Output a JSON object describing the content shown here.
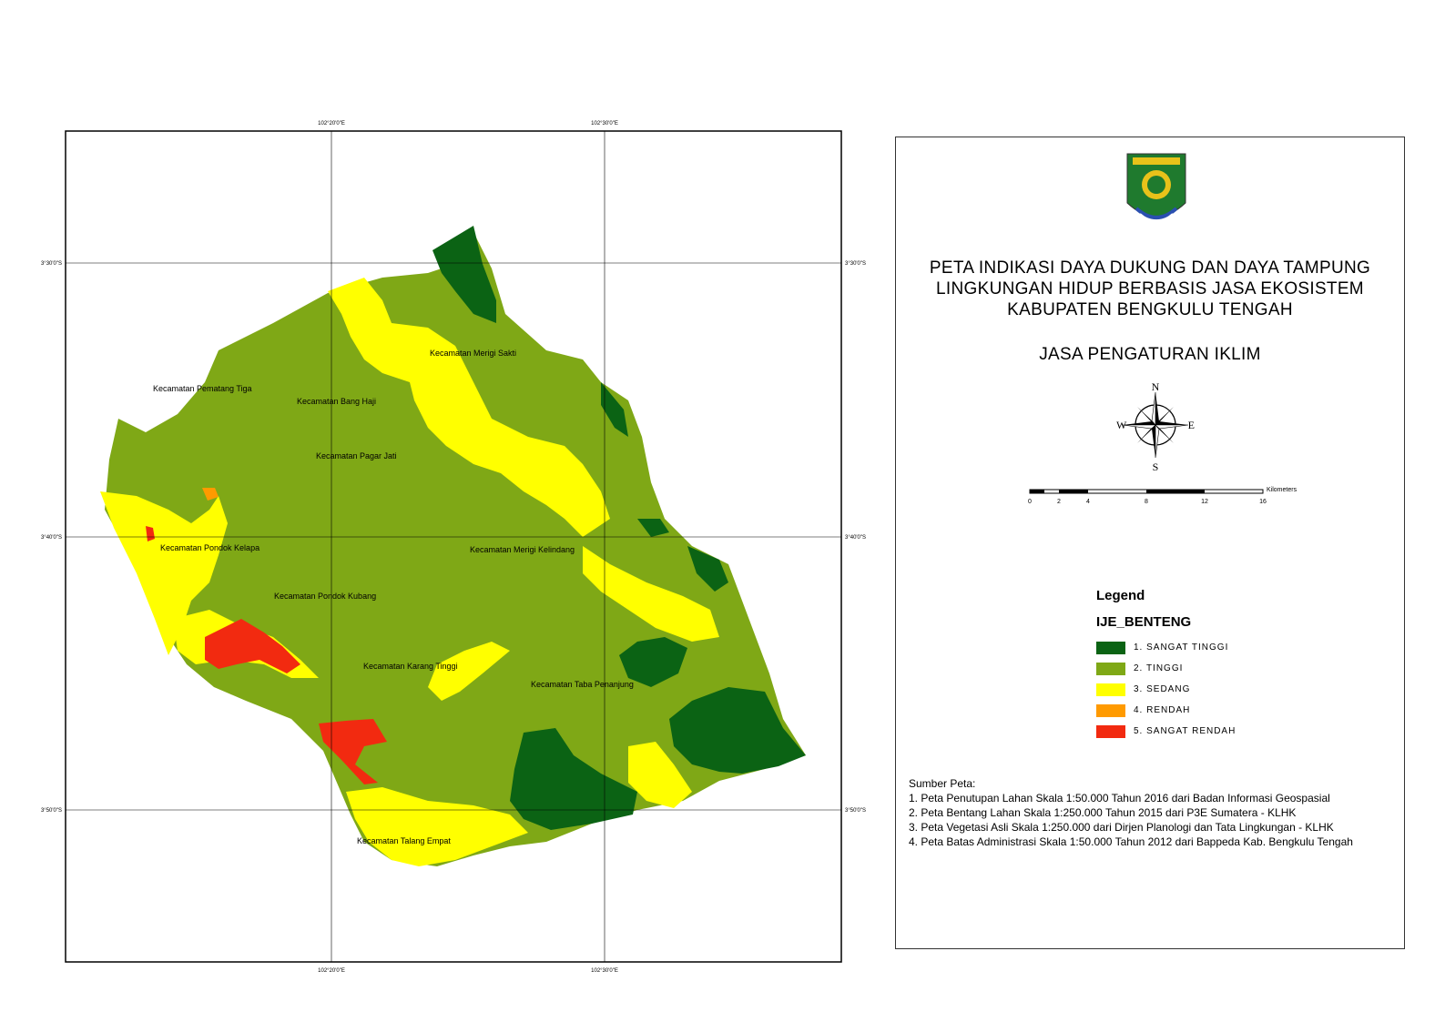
{
  "map": {
    "grid": {
      "top_labels": [
        "102°20'0\"E",
        "102°30'0\"E"
      ],
      "bottom_labels": [
        "102°20'0\"E",
        "102°30'0\"E"
      ],
      "left_labels": [
        "3°30'0\"S",
        "3°40'0\"S",
        "3°50'0\"S"
      ],
      "right_labels": [
        "3°30'0\"S",
        "3°40'0\"S",
        "3°50'0\"S"
      ]
    },
    "districts": [
      "Kecamatan Pematang Tiga",
      "Kecamatan Bang Haji",
      "Kecamatan Merigi Sakti",
      "Kecamatan Pagar Jati",
      "Kecamatan Pondok Kelapa",
      "Kecamatan Merigi Kelindang",
      "Kecamatan Pondok Kubang",
      "Kecamatan Karang Tinggi",
      "Kecamatan Taba Penanjung",
      "Kecamatan Talang Empat"
    ]
  },
  "title": {
    "lines": [
      "PETA INDIKASI DAYA DUKUNG DAN DAYA TAMPUNG",
      "LINGKUNGAN HIDUP BERBASIS JASA EKOSISTEM",
      "KABUPATEN BENGKULU TENGAH"
    ],
    "subtitle": "JASA PENGATURAN IKLIM"
  },
  "north_arrow": {
    "n": "N",
    "s": "S",
    "e": "E",
    "w": "W"
  },
  "scale_bar": {
    "unit": "Kilometers",
    "ticks": [
      "0",
      "2",
      "4",
      "8",
      "12",
      "16"
    ]
  },
  "legend": {
    "title": "Legend",
    "layer": "IJE_BENTENG",
    "items": [
      {
        "label": "1. SANGAT TINGGI",
        "color": "#0b6314"
      },
      {
        "label": "2. TINGGI",
        "color": "#7fa816"
      },
      {
        "label": "3. SEDANG",
        "color": "#ffff00"
      },
      {
        "label": "4. RENDAH",
        "color": "#ff9a00"
      },
      {
        "label": "5. SANGAT RENDAH",
        "color": "#f22a10"
      }
    ]
  },
  "sources": {
    "heading": "Sumber Peta:",
    "items": [
      "1. Peta Penutupan Lahan Skala 1:50.000 Tahun 2016 dari Badan Informasi Geospasial",
      "2. Peta Bentang Lahan Skala 1:250.000 Tahun 2015 dari  P3E Sumatera - KLHK",
      "3. Peta Vegetasi Asli Skala 1:250.000 dari Dirjen Planologi dan Tata Lingkungan - KLHK",
      "4. Peta Batas Administrasi Skala 1:50.000 Tahun 2012 dari Bappeda Kab. Bengkulu Tengah"
    ]
  }
}
